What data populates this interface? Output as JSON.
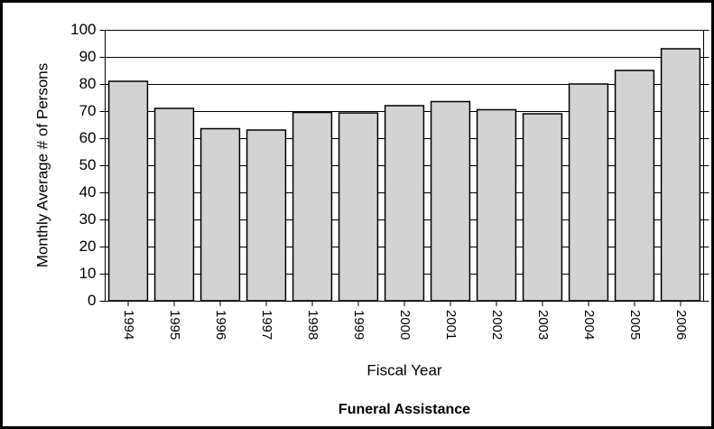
{
  "chart_data": {
    "type": "bar",
    "title": "Funeral Assistance",
    "x_label": "Fiscal Year",
    "y_label": "Monthly Average # of Persons",
    "categories": [
      "1994",
      "1995",
      "1996",
      "1997",
      "1998",
      "1999",
      "2000",
      "2001",
      "2002",
      "2003",
      "2004",
      "2005",
      "2006"
    ],
    "values": [
      81,
      71,
      63.5,
      63,
      69.5,
      69.3,
      72,
      73.5,
      70.5,
      69,
      80,
      85,
      93
    ],
    "color": "#d3d3d3",
    "ylim": [
      0,
      100
    ],
    "yticks": [
      0,
      10,
      20,
      30,
      40,
      50,
      60,
      70,
      80,
      90,
      100
    ],
    "grid": true
  }
}
